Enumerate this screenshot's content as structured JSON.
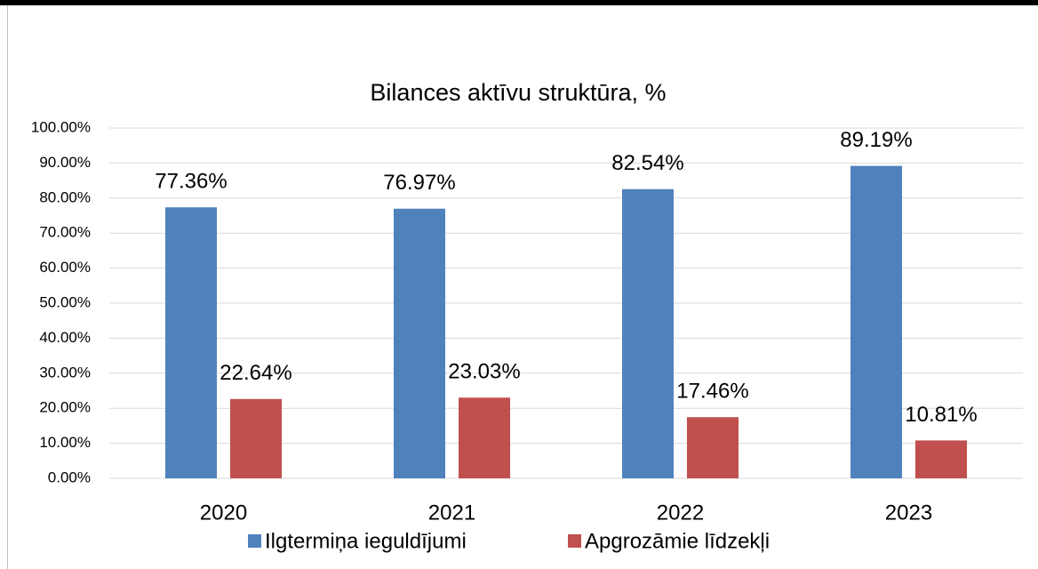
{
  "chart_data": {
    "type": "bar",
    "title": "Bilances aktīvu struktūra, %",
    "categories": [
      "2020",
      "2021",
      "2022",
      "2023"
    ],
    "series": [
      {
        "name": "Ilgtermiņa ieguldījumi",
        "color": "#4f81bd",
        "values": [
          77.36,
          76.97,
          82.54,
          89.19
        ],
        "value_labels": [
          "77.36%",
          "76.97%",
          "82.54%",
          "89.19%"
        ]
      },
      {
        "name": "Apgrozāmie līdzekļi",
        "color": "#c0504d",
        "values": [
          22.64,
          23.03,
          17.46,
          10.81
        ],
        "value_labels": [
          "22.64%",
          "23.03%",
          "17.46%",
          "10.81%"
        ]
      }
    ],
    "ylim": [
      0,
      100
    ],
    "yticks": [
      {
        "value": 0,
        "label": "0.00%"
      },
      {
        "value": 10,
        "label": "10.00%"
      },
      {
        "value": 20,
        "label": "20.00%"
      },
      {
        "value": 30,
        "label": "30.00%"
      },
      {
        "value": 40,
        "label": "40.00%"
      },
      {
        "value": 50,
        "label": "50.00%"
      },
      {
        "value": 60,
        "label": "60.00%"
      },
      {
        "value": 70,
        "label": "70.00%"
      },
      {
        "value": 80,
        "label": "80.00%"
      },
      {
        "value": 90,
        "label": "90.00%"
      },
      {
        "value": 100,
        "label": "100.00%"
      }
    ],
    "grid": true,
    "legend": "bottom"
  }
}
